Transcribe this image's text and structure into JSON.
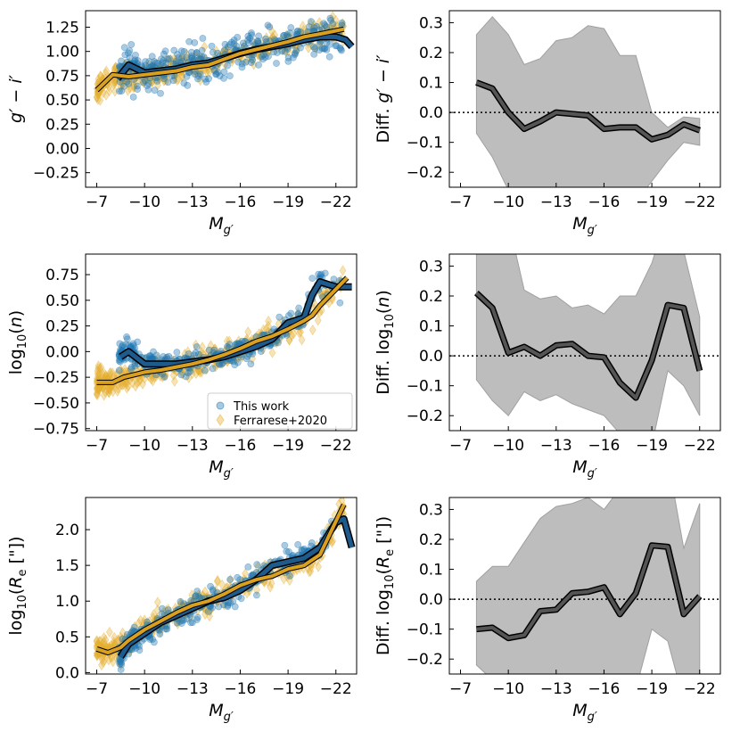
{
  "colors": {
    "this_work": "#1f77b4",
    "this_work_median": "#1f5a8c",
    "ferrarese": "#e6b030",
    "ferrarese_median": "#d9a020",
    "diff_band": "#bdbdbd",
    "diff_line": "#555555"
  },
  "legend": {
    "this_work": "This work",
    "ferrarese": "Ferrarese+2020",
    "placement": "lower-right (middle-left panel)"
  },
  "chart_data": [
    {
      "type": "scatter",
      "panel": "color",
      "xlabel": "M_g′",
      "ylabel": "g′ − i′",
      "xlim": [
        -6.3,
        -23.3
      ],
      "ylim": [
        -0.4,
        1.42
      ],
      "xticks": [
        "−7",
        "−10",
        "−13",
        "−16",
        "−19",
        "−22"
      ],
      "yticks": [
        "−0.25",
        "0.00",
        "0.25",
        "0.50",
        "0.75",
        "1.00",
        "1.25"
      ],
      "series": [
        {
          "name": "This work",
          "median": {
            "x": [
              -8.3,
              -9,
              -10,
              -11,
              -12,
              -13,
              -14,
              -15,
              -16,
              -17,
              -18,
              -19,
              -20,
              -21,
              -22,
              -22.6,
              -23
            ],
            "y": [
              0.72,
              0.86,
              0.78,
              0.8,
              0.82,
              0.86,
              0.88,
              0.93,
              0.98,
              1.02,
              1.05,
              1.08,
              1.12,
              1.15,
              1.15,
              1.12,
              1.05
            ]
          }
        },
        {
          "name": "Ferrarese+2020",
          "median": {
            "x": [
              -7,
              -8,
              -9,
              -10,
              -11,
              -12,
              -13,
              -14,
              -15,
              -16,
              -17,
              -18,
              -19,
              -20,
              -21,
              -22.5
            ],
            "y": [
              0.6,
              0.76,
              0.74,
              0.76,
              0.78,
              0.8,
              0.84,
              0.86,
              0.92,
              0.98,
              1.02,
              1.06,
              1.1,
              1.15,
              1.18,
              1.23
            ]
          }
        }
      ]
    },
    {
      "type": "line",
      "panel": "color-diff",
      "xlabel": "M_g′",
      "ylabel": "Diff. g′ − i′",
      "xlim": [
        -6.3,
        -23.3
      ],
      "ylim": [
        -0.25,
        0.34
      ],
      "xticks": [
        "−7",
        "−10",
        "−13",
        "−16",
        "−19",
        "−22"
      ],
      "yticks": [
        "−0.2",
        "−0.1",
        "0.0",
        "0.1",
        "0.2",
        "0.3"
      ],
      "x": [
        -8,
        -9,
        -10,
        -11,
        -12,
        -13,
        -14,
        -15,
        -16,
        -17,
        -18,
        -19,
        -20,
        -21,
        -22
      ],
      "y": [
        0.1,
        0.08,
        0.0,
        -0.055,
        -0.03,
        0.0,
        -0.005,
        -0.01,
        -0.055,
        -0.05,
        -0.05,
        -0.09,
        -0.075,
        -0.04,
        -0.06
      ],
      "band_upper": [
        0.26,
        0.32,
        0.26,
        0.16,
        0.18,
        0.24,
        0.25,
        0.29,
        0.28,
        0.19,
        0.19,
        0.0,
        -0.05,
        -0.015,
        -0.02
      ],
      "band_lower": [
        -0.07,
        -0.15,
        -0.26,
        -0.35,
        -0.35,
        -0.3,
        -0.3,
        -0.3,
        -0.3,
        -0.3,
        -0.3,
        -0.23,
        -0.16,
        -0.1,
        -0.11
      ],
      "reference_line": 0
    },
    {
      "type": "scatter",
      "panel": "sersic-index",
      "xlabel": "M_g′",
      "ylabel": "log₁₀(n)",
      "xlim": [
        -6.3,
        -23.3
      ],
      "ylim": [
        -0.77,
        0.95
      ],
      "xticks": [
        "−7",
        "−10",
        "−13",
        "−16",
        "−19",
        "−22"
      ],
      "yticks": [
        "−0.75",
        "−0.50",
        "−0.25",
        "0.00",
        "0.25",
        "0.50",
        "0.75"
      ],
      "series": [
        {
          "name": "This work",
          "median": {
            "x": [
              -8.5,
              -9,
              -10,
              -11,
              -12,
              -13,
              -14,
              -15,
              -16,
              -17,
              -18,
              -19,
              -20,
              -20.5,
              -21,
              -22,
              -23
            ],
            "y": [
              -0.05,
              0.0,
              -0.12,
              -0.12,
              -0.12,
              -0.1,
              -0.08,
              -0.05,
              0.0,
              0.05,
              0.12,
              0.28,
              0.33,
              0.55,
              0.68,
              0.63,
              0.63
            ]
          }
        },
        {
          "name": "Ferrarese+2020",
          "median": {
            "x": [
              -7,
              -8,
              -8.7,
              -9.5,
              -10,
              -11,
              -12,
              -13,
              -14,
              -15,
              -16,
              -17,
              -18,
              -19,
              -20,
              -20.5,
              -21,
              -22.7
            ],
            "y": [
              -0.3,
              -0.3,
              -0.25,
              -0.22,
              -0.2,
              -0.18,
              -0.15,
              -0.12,
              -0.08,
              -0.03,
              0.03,
              0.1,
              0.15,
              0.22,
              0.3,
              0.35,
              0.45,
              0.72
            ]
          }
        }
      ]
    },
    {
      "type": "line",
      "panel": "sersic-index-diff",
      "xlabel": "M_g′",
      "ylabel": "Diff. log₁₀(n)",
      "xlim": [
        -6.3,
        -23.3
      ],
      "ylim": [
        -0.25,
        0.34
      ],
      "xticks": [
        "−7",
        "−10",
        "−13",
        "−16",
        "−19",
        "−22"
      ],
      "yticks": [
        "−0.2",
        "−0.1",
        "0.0",
        "0.1",
        "0.2",
        "0.3"
      ],
      "x": [
        -8,
        -9,
        -10,
        -11,
        -12,
        -13,
        -14,
        -15,
        -16,
        -17,
        -18,
        -19,
        -20,
        -21,
        -22
      ],
      "y": [
        0.21,
        0.16,
        0.01,
        0.03,
        0.0,
        0.035,
        0.04,
        0.0,
        -0.005,
        -0.09,
        -0.14,
        -0.015,
        0.17,
        0.16,
        -0.05
      ],
      "band_upper": [
        0.5,
        0.5,
        0.45,
        0.22,
        0.19,
        0.2,
        0.16,
        0.17,
        0.14,
        0.2,
        0.2,
        0.31,
        0.48,
        0.35,
        0.13
      ],
      "band_lower": [
        -0.08,
        -0.15,
        -0.2,
        -0.12,
        -0.15,
        -0.13,
        -0.16,
        -0.18,
        -0.2,
        -0.26,
        -0.3,
        -0.3,
        -0.05,
        -0.1,
        -0.2
      ],
      "reference_line": 0
    },
    {
      "type": "scatter",
      "panel": "effective-radius",
      "xlabel": "M_g′",
      "ylabel": "log₁₀(R_e [\"])",
      "xlim": [
        -6.3,
        -23.3
      ],
      "ylim": [
        -0.02,
        2.45
      ],
      "xticks": [
        "−7",
        "−10",
        "−13",
        "−16",
        "−19",
        "−22"
      ],
      "yticks": [
        "0.0",
        "0.5",
        "1.0",
        "1.5",
        "2.0"
      ],
      "series": [
        {
          "name": "This work",
          "median": {
            "x": [
              -8.5,
              -9,
              -10,
              -11,
              -12,
              -13,
              -14,
              -15,
              -16,
              -17,
              -18,
              -19,
              -20,
              -21,
              -22,
              -22.5,
              -23
            ],
            "y": [
              0.22,
              0.4,
              0.55,
              0.7,
              0.8,
              0.9,
              1.0,
              1.05,
              1.15,
              1.3,
              1.5,
              1.55,
              1.6,
              1.75,
              2.1,
              2.15,
              1.75
            ]
          }
        },
        {
          "name": "Ferrarese+2020",
          "median": {
            "x": [
              -7,
              -7.7,
              -8.5,
              -9,
              -10,
              -11,
              -12,
              -13,
              -14,
              -15,
              -16,
              -17,
              -18,
              -19,
              -20,
              -21,
              -22.5
            ],
            "y": [
              0.33,
              0.28,
              0.35,
              0.45,
              0.6,
              0.72,
              0.84,
              0.94,
              1.0,
              1.1,
              1.22,
              1.3,
              1.35,
              1.45,
              1.5,
              1.65,
              2.35
            ]
          }
        }
      ]
    },
    {
      "type": "line",
      "panel": "effective-radius-diff",
      "xlabel": "M_g′",
      "ylabel": "Diff. log₁₀(R_e [\"])",
      "xlim": [
        -6.3,
        -23.3
      ],
      "ylim": [
        -0.25,
        0.34
      ],
      "xticks": [
        "−7",
        "−10",
        "−13",
        "−16",
        "−19",
        "−22"
      ],
      "yticks": [
        "−0.2",
        "−0.1",
        "0.0",
        "0.1",
        "0.2",
        "0.3"
      ],
      "x": [
        -8,
        -9,
        -10,
        -11,
        -12,
        -13,
        -14,
        -15,
        -16,
        -17,
        -18,
        -19,
        -20,
        -21,
        -22
      ],
      "y": [
        -0.1,
        -0.095,
        -0.13,
        -0.12,
        -0.04,
        -0.035,
        0.02,
        0.025,
        0.04,
        -0.05,
        0.02,
        0.18,
        0.175,
        -0.05,
        0.01
      ],
      "band_upper": [
        0.06,
        0.11,
        0.11,
        0.19,
        0.27,
        0.31,
        0.32,
        0.34,
        0.3,
        0.37,
        0.47,
        0.47,
        0.47,
        0.17,
        0.32
      ],
      "band_lower": [
        -0.22,
        -0.27,
        -0.32,
        -0.3,
        -0.28,
        -0.28,
        -0.3,
        -0.3,
        -0.3,
        -0.35,
        -0.3,
        -0.1,
        -0.14,
        -0.34,
        -0.3
      ],
      "reference_line": 0
    }
  ]
}
